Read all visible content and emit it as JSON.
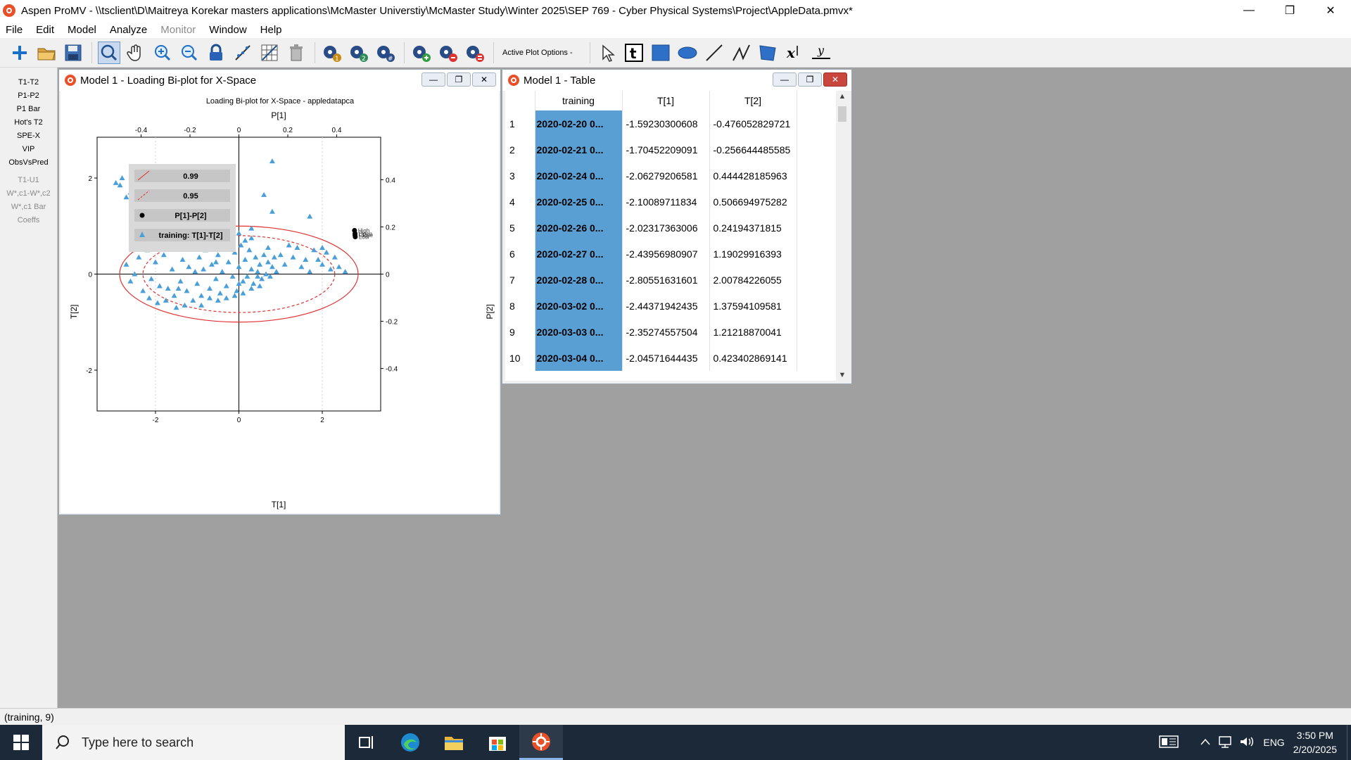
{
  "app": {
    "title": "Aspen ProMV - \\\\tsclient\\D\\Maitreya Korekar masters applications\\McMaster Universtiy\\McMaster Study\\Winter 2025\\SEP 769 - Cyber Physical Systems\\Project\\AppleData.pmvx*"
  },
  "menu": {
    "file": "File",
    "edit": "Edit",
    "model": "Model",
    "analyze": "Analyze",
    "monitor": "Monitor",
    "window": "Window",
    "help": "Help"
  },
  "toolbar": {
    "active_plot_options": "Active Plot Options -"
  },
  "left_panel": {
    "items": [
      "T1-T2",
      "P1-P2",
      "P1 Bar",
      "Hot's T2",
      "SPE-X",
      "VIP",
      "ObsVsPred"
    ],
    "dim_items": [
      "T1-U1",
      "W*,c1-W*,c2",
      "W*,c1 Bar",
      "Coeffs"
    ]
  },
  "plot_window": {
    "title": "Model 1 - Loading Bi-plot for X-Space",
    "legend": {
      "l1": "0.99",
      "l2": "0.95",
      "l3": "P[1]-P[2]",
      "l4": "training: T[1]-T[2]"
    }
  },
  "chart_data": {
    "type": "scatter",
    "title": "Loading Bi-plot for X-Space - appledatapca",
    "xlabel": "T[1]",
    "ylabel": "T[2]",
    "x2label": "P[1]",
    "y2label": "P[2]",
    "xlim": [
      -3.4,
      3.4
    ],
    "ylim": [
      -2.85,
      2.85
    ],
    "x2lim": [
      -0.58,
      0.58
    ],
    "y2lim": [
      -0.58,
      0.58
    ],
    "xticks": [
      -2,
      0,
      2
    ],
    "yticks": [
      -2,
      0,
      2
    ],
    "x2ticks": [
      -0.4,
      -0.2,
      0,
      0.2,
      0.4
    ],
    "y2ticks": [
      -0.4,
      -0.2,
      0,
      0.2,
      0.4
    ],
    "ellipse_99": {
      "a": 2.86,
      "b": 1.0
    },
    "ellipse_95": {
      "a": 2.3,
      "b": 0.8
    },
    "loadings": [
      {
        "name": "High",
        "p1": 0.473,
        "p2": 0.185
      },
      {
        "name": "Open",
        "p1": 0.475,
        "p2": 0.172
      },
      {
        "name": "Close",
        "p1": 0.475,
        "p2": 0.165
      },
      {
        "name": "Low",
        "p1": 0.476,
        "p2": 0.158
      }
    ],
    "series": [
      {
        "name": "training: T[1]-T[2]",
        "points": [
          [
            -2.8,
            2.0
          ],
          [
            -2.95,
            1.9
          ],
          [
            -2.85,
            1.85
          ],
          [
            -2.6,
            1.7
          ],
          [
            -2.5,
            1.55
          ],
          [
            -2.7,
            1.6
          ],
          [
            -2.3,
            1.4
          ],
          [
            -2.45,
            1.25
          ],
          [
            -2.2,
            1.1
          ],
          [
            -2.35,
            1.0
          ],
          [
            -2.1,
            0.95
          ],
          [
            -1.9,
            1.15
          ],
          [
            -1.75,
            1.0
          ],
          [
            -1.6,
            0.85
          ],
          [
            -1.3,
            1.0
          ],
          [
            -1.15,
            1.1
          ],
          [
            -1.05,
            1.0
          ],
          [
            0.8,
            2.35
          ],
          [
            0.6,
            1.65
          ],
          [
            0.8,
            1.3
          ],
          [
            1.7,
            1.2
          ],
          [
            0.3,
            0.95
          ],
          [
            -2.7,
            0.2
          ],
          [
            -2.5,
            0.0
          ],
          [
            -2.4,
            0.35
          ],
          [
            -2.2,
            0.5
          ],
          [
            -2.1,
            -0.1
          ],
          [
            -2.0,
            0.25
          ],
          [
            -1.9,
            -0.25
          ],
          [
            -1.8,
            0.4
          ],
          [
            -1.7,
            -0.3
          ],
          [
            -1.6,
            0.1
          ],
          [
            -1.55,
            -0.45
          ],
          [
            -1.5,
            0.55
          ],
          [
            -1.4,
            -0.15
          ],
          [
            -1.35,
            0.3
          ],
          [
            -1.25,
            -0.35
          ],
          [
            -1.2,
            0.15
          ],
          [
            -1.1,
            0.6
          ],
          [
            -1.0,
            -0.2
          ],
          [
            -0.95,
            0.35
          ],
          [
            -0.9,
            -0.45
          ],
          [
            -0.85,
            0.1
          ],
          [
            -0.8,
            0.5
          ],
          [
            -0.7,
            -0.3
          ],
          [
            -0.65,
            0.2
          ],
          [
            -0.6,
            0.7
          ],
          [
            -0.55,
            -0.1
          ],
          [
            -0.5,
            0.4
          ],
          [
            -0.45,
            -0.4
          ],
          [
            -0.4,
            0.05
          ],
          [
            -0.35,
            0.55
          ],
          [
            -0.3,
            -0.25
          ],
          [
            -0.25,
            0.25
          ],
          [
            -0.2,
            0.8
          ],
          [
            -0.15,
            -0.05
          ],
          [
            -0.1,
            0.45
          ],
          [
            -0.05,
            -0.35
          ],
          [
            0.0,
            0.15
          ],
          [
            0.05,
            0.6
          ],
          [
            0.1,
            -0.15
          ],
          [
            0.15,
            0.3
          ],
          [
            0.2,
            -0.05
          ],
          [
            0.25,
            0.5
          ],
          [
            0.3,
            0.1
          ],
          [
            0.35,
            -0.2
          ],
          [
            0.4,
            0.35
          ],
          [
            0.45,
            0.05
          ],
          [
            0.5,
            0.2
          ],
          [
            0.55,
            -0.1
          ],
          [
            0.6,
            0.4
          ],
          [
            0.65,
            0.0
          ],
          [
            0.7,
            0.25
          ],
          [
            0.75,
            -0.05
          ],
          [
            0.8,
            0.15
          ],
          [
            0.85,
            0.35
          ],
          [
            0.9,
            0.05
          ],
          [
            -2.3,
            -0.35
          ],
          [
            -2.15,
            -0.5
          ],
          [
            -1.95,
            -0.6
          ],
          [
            -1.75,
            -0.55
          ],
          [
            -1.5,
            -0.7
          ],
          [
            -1.3,
            -0.65
          ],
          [
            -1.1,
            -0.55
          ],
          [
            -0.9,
            -0.65
          ],
          [
            -0.7,
            -0.5
          ],
          [
            -0.5,
            -0.55
          ],
          [
            -0.3,
            -0.5
          ],
          [
            -0.1,
            -0.45
          ],
          [
            0.1,
            -0.4
          ],
          [
            0.3,
            -0.3
          ],
          [
            0.5,
            -0.25
          ],
          [
            -1.5,
            0.75
          ],
          [
            -1.2,
            0.8
          ],
          [
            -0.9,
            0.85
          ],
          [
            -0.4,
            0.9
          ],
          [
            0.0,
            0.85
          ],
          [
            0.3,
            0.75
          ],
          [
            -2.55,
            0.6
          ],
          [
            -2.35,
            0.75
          ],
          [
            1.2,
            0.6
          ],
          [
            1.4,
            0.55
          ],
          [
            1.6,
            0.3
          ],
          [
            1.8,
            0.5
          ],
          [
            2.0,
            0.2
          ],
          [
            2.1,
            0.45
          ],
          [
            2.2,
            0.1
          ],
          [
            2.3,
            0.35
          ],
          [
            2.4,
            0.15
          ],
          [
            2.55,
            0.05
          ],
          [
            1.5,
            0.15
          ],
          [
            1.7,
            0.05
          ],
          [
            1.9,
            0.3
          ],
          [
            2.0,
            0.55
          ],
          [
            1.3,
            0.35
          ],
          [
            1.1,
            0.2
          ],
          [
            -1.8,
            1.3
          ],
          [
            -1.0,
            0.65
          ],
          [
            -0.75,
            0.75
          ],
          [
            0.15,
            0.7
          ],
          [
            -2.6,
            -0.15
          ],
          [
            -1.45,
            -0.3
          ],
          [
            -1.05,
            0.05
          ],
          [
            -0.55,
            0.25
          ],
          [
            0.0,
            -0.2
          ],
          [
            0.45,
            -0.05
          ],
          [
            0.7,
            0.55
          ],
          [
            1.0,
            0.4
          ]
        ]
      }
    ]
  },
  "table_window": {
    "title": "Model 1 - Table",
    "columns": [
      "training",
      "T[1]",
      "T[2]"
    ],
    "rows": [
      [
        "1",
        "2020-02-20 0...",
        "-1.59230300608",
        "-0.476052829721"
      ],
      [
        "2",
        "2020-02-21 0...",
        "-1.70452209091",
        "-0.256644485585"
      ],
      [
        "3",
        "2020-02-24 0...",
        "-2.06279206581",
        "0.444428185963"
      ],
      [
        "4",
        "2020-02-25 0...",
        "-2.10089711834",
        "0.506694975282"
      ],
      [
        "5",
        "2020-02-26 0...",
        "-2.02317363006",
        "0.24194371815"
      ],
      [
        "6",
        "2020-02-27 0...",
        "-2.43956980907",
        "1.19029916393"
      ],
      [
        "7",
        "2020-02-28 0...",
        "-2.80551631601",
        "2.00784226055"
      ],
      [
        "8",
        "2020-03-02 0...",
        "-2.44371942435",
        "1.37594109581"
      ],
      [
        "9",
        "2020-03-03 0...",
        "-2.35274557504",
        "1.21218870041"
      ],
      [
        "10",
        "2020-03-04 0...",
        "-2.04571644435",
        "0.423402869141"
      ]
    ]
  },
  "status_bar": {
    "text": "(training, 9)"
  },
  "taskbar": {
    "search_placeholder": "Type here to search",
    "lang": "ENG",
    "time": "3:50 PM",
    "date": "2/20/2025"
  },
  "colors": {
    "accent": "#e8502a",
    "point": "#4a9fd8",
    "ellipse": "#e03030",
    "table_highlight": "#5a9fd4"
  }
}
